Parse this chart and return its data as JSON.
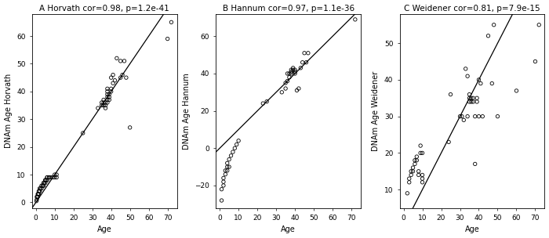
{
  "title_A": "A Horvath cor=0.98, p=1.2e-41",
  "title_B": "B Hannum cor=0.97, p=1.1e-36",
  "title_C": "C Weidener cor=0.81, p=7.9e-15",
  "xlabel": "Age",
  "ylabel_A": "DNAm Age Horvath",
  "ylabel_B": "DNAm Age Hannum",
  "ylabel_C": "DNAm Age Weidener",
  "xlim_A": [
    -2,
    75
  ],
  "ylim_A": [
    -2,
    68
  ],
  "xlim_B": [
    -2,
    75
  ],
  "ylim_B": [
    -32,
    72
  ],
  "xlim_C": [
    -2,
    75
  ],
  "ylim_C": [
    5,
    58
  ],
  "xticks_A": [
    0,
    10,
    20,
    30,
    40,
    50,
    60,
    70
  ],
  "yticks_A": [
    0,
    10,
    20,
    30,
    40,
    50,
    60
  ],
  "xticks_B": [
    0,
    10,
    20,
    30,
    40,
    50,
    60,
    70
  ],
  "yticks_B": [
    -20,
    0,
    20,
    40,
    60
  ],
  "xticks_C": [
    0,
    10,
    20,
    30,
    40,
    50,
    60,
    70
  ],
  "yticks_C": [
    10,
    20,
    30,
    40,
    50
  ],
  "scatter_A_x": [
    0.3,
    0.5,
    0.5,
    0.8,
    1,
    1,
    1.2,
    1.5,
    1.5,
    2,
    2,
    2,
    2.5,
    3,
    3,
    3.5,
    4,
    4,
    4,
    4.5,
    5,
    5,
    5,
    5.5,
    6,
    6,
    6,
    7,
    7,
    8,
    9,
    10,
    10,
    11,
    11,
    25,
    33,
    35,
    35,
    36,
    36,
    36,
    37,
    37,
    37,
    38,
    38,
    38,
    38,
    38,
    38,
    39,
    39,
    39,
    40,
    40,
    40,
    41,
    41,
    42,
    43,
    45,
    45,
    46,
    47,
    48,
    50,
    70,
    72
  ],
  "scatter_A_y": [
    0.5,
    1,
    2,
    2,
    2,
    3,
    3,
    3,
    4,
    4,
    4,
    5,
    5,
    5,
    6,
    6,
    6,
    6,
    7,
    7,
    7,
    8,
    8,
    8,
    8,
    9,
    9,
    9,
    9,
    9,
    9,
    9,
    10,
    9,
    10,
    25,
    34,
    35,
    36,
    35,
    36,
    37,
    34,
    35,
    36,
    36,
    37,
    38,
    39,
    40,
    41,
    37,
    38,
    39,
    40,
    41,
    45,
    43,
    46,
    44,
    52,
    45,
    51,
    46,
    51,
    45,
    27,
    59,
    65
  ],
  "scatter_B_x": [
    1,
    1,
    2,
    2,
    2,
    3,
    3,
    4,
    4,
    4,
    5,
    5,
    6,
    7,
    8,
    9,
    10,
    23,
    25,
    33,
    35,
    35,
    36,
    36,
    37,
    37,
    38,
    38,
    38,
    39,
    39,
    40,
    40,
    40,
    41,
    42,
    43,
    44,
    45,
    46,
    47,
    72
  ],
  "scatter_B_y": [
    -28,
    -22,
    -18,
    -16,
    -20,
    -14,
    -12,
    -12,
    -10,
    -8,
    -10,
    -6,
    -4,
    -2,
    0,
    2,
    4,
    24,
    25,
    30,
    35,
    32,
    36,
    40,
    40,
    38,
    41,
    42,
    40,
    42,
    43,
    41,
    40,
    42,
    31,
    32,
    43,
    46,
    51,
    46,
    51,
    69
  ],
  "scatter_C_x": [
    2,
    3,
    3,
    4,
    4,
    5,
    5,
    6,
    6,
    7,
    7,
    8,
    8,
    9,
    9,
    10,
    10,
    10,
    10,
    24,
    25,
    30,
    31,
    32,
    33,
    34,
    34,
    35,
    35,
    35,
    36,
    36,
    37,
    37,
    38,
    38,
    39,
    39,
    40,
    40,
    41,
    42,
    45,
    47,
    48,
    50,
    60,
    70,
    72
  ],
  "scatter_C_y": [
    9,
    12,
    13,
    14,
    15,
    15,
    16,
    17,
    18,
    18,
    19,
    14,
    15,
    20,
    22,
    12,
    13,
    14,
    20,
    23,
    36,
    30,
    30,
    29,
    43,
    41,
    30,
    35,
    36,
    34,
    35,
    34,
    35,
    34,
    17,
    30,
    34,
    35,
    30,
    40,
    39,
    30,
    52,
    39,
    55,
    30,
    37,
    45,
    55
  ],
  "scatter_color": "none",
  "scatter_edge_color": "#000000",
  "line_color": "black",
  "font_size_title": 7.5,
  "font_size_axis": 7,
  "font_size_tick": 6.5
}
